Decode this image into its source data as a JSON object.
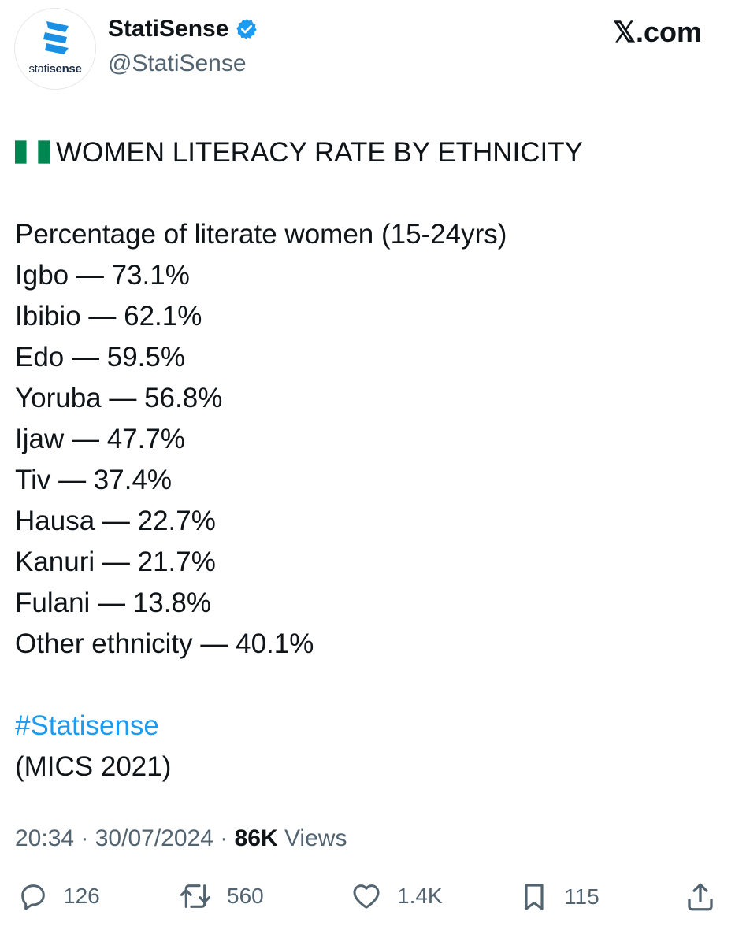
{
  "user": {
    "display_name": "StatiSense",
    "handle": "@StatiSense",
    "verified": true,
    "avatar_brand_light": "stati",
    "avatar_brand_bold": "sense"
  },
  "site": "𝕏.com",
  "tweet": {
    "title": "WOMEN LITERACY RATE BY ETHNICITY",
    "subtitle": "Percentage of literate women (15-24yrs)",
    "stats": [
      {
        "text": "Igbo — 73.1%"
      },
      {
        "text": "Ibibio — 62.1%"
      },
      {
        "text": "Edo — 59.5%"
      },
      {
        "text": "Yoruba — 56.8%"
      },
      {
        "text": "Ijaw — 47.7%"
      },
      {
        "text": "Tiv — 37.4%"
      },
      {
        "text": "Hausa — 22.7%"
      },
      {
        "text": "Kanuri — 21.7%"
      },
      {
        "text": "Fulani — 13.8%"
      },
      {
        "text": "Other ethnicity — 40.1%"
      }
    ],
    "hashtag": "#Statisense",
    "source": "(MICS 2021)"
  },
  "meta": {
    "time": "20:34",
    "date": "30/07/2024",
    "views_count": "86K",
    "views_label": "Views"
  },
  "actions": {
    "replies": "126",
    "reposts": "560",
    "likes": "1.4K",
    "bookmarks": "115"
  },
  "colors": {
    "link": "#1d9bf0",
    "verified": "#1d9bf0",
    "muted": "#536471",
    "brand": "#1a8fe3",
    "flag_green": "#008751"
  },
  "icons": [
    "verified-badge-icon",
    "nigeria-flag-icon",
    "reply-icon",
    "repost-icon",
    "like-icon",
    "bookmark-icon",
    "share-icon"
  ]
}
